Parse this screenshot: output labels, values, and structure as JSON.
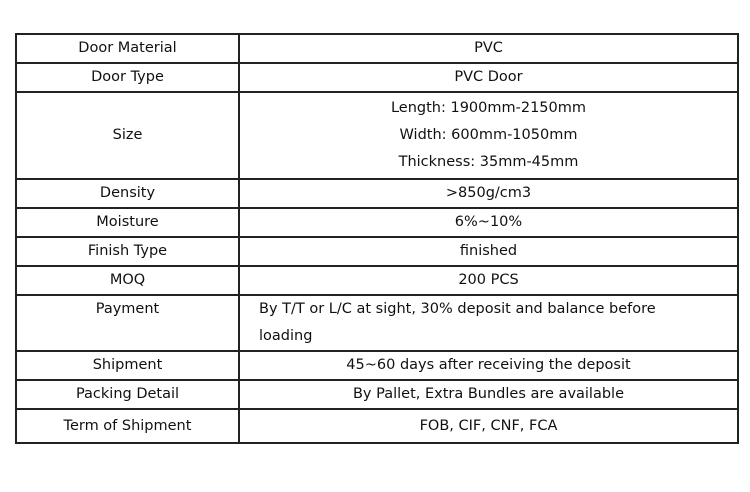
{
  "rows": [
    {
      "label": "Door Material",
      "value": "PVC"
    },
    {
      "label": "Door Type",
      "value": "PVC Door"
    },
    {
      "label": "Size",
      "lines": [
        "Length: 1900mm-2150mm",
        "Width: 600mm-1050mm",
        "Thickness: 35mm-45mm"
      ]
    },
    {
      "label": "Density",
      "value": ">850g/cm3"
    },
    {
      "label": "Moisture",
      "value": "6%~10%"
    },
    {
      "label": "Finish Type",
      "value": "finished"
    },
    {
      "label": "MOQ",
      "value": "200 PCS"
    },
    {
      "label": "Payment",
      "lines": [
        "By T/T or L/C at sight, 30% deposit and balance before",
        "loading"
      ]
    },
    {
      "label": "Shipment",
      "value": "45~60 days after receiving the deposit"
    },
    {
      "label": "Packing Detail",
      "value": "By Pallet, Extra Bundles are available"
    },
    {
      "label": "Term of Shipment",
      "value": "FOB, CIF, CNF, FCA"
    }
  ]
}
